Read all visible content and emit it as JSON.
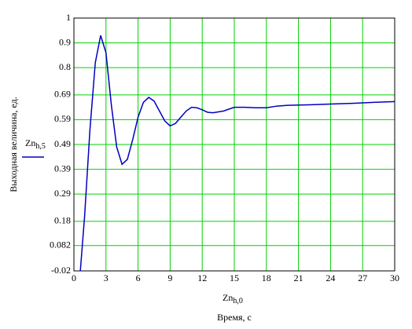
{
  "chart_data": {
    "type": "line",
    "y_label": "Выходная величина, ед.",
    "x_label": "Время, с",
    "x_var": {
      "main": "Zn",
      "sub": "h,0"
    },
    "x": [
      0.6,
      1.0,
      1.5,
      2.0,
      2.5,
      3.0,
      3.5,
      4.0,
      4.5,
      5.0,
      5.5,
      6.0,
      6.5,
      7.0,
      7.5,
      8.0,
      8.5,
      9.0,
      9.5,
      10.0,
      10.5,
      11.0,
      11.5,
      12.0,
      12.5,
      13.0,
      14.0,
      15.0,
      16.0,
      17.0,
      18.0,
      19.0,
      20.0,
      22.0,
      24.0,
      26.0,
      28.0,
      30.0
    ],
    "series": [
      {
        "name": "Zn",
        "name_sub": "h,5",
        "color": "#0000c0",
        "values": [
          -0.02,
          0.2,
          0.55,
          0.82,
          0.93,
          0.86,
          0.65,
          0.48,
          0.41,
          0.43,
          0.51,
          0.6,
          0.66,
          0.68,
          0.665,
          0.625,
          0.585,
          0.565,
          0.575,
          0.6,
          0.625,
          0.64,
          0.638,
          0.63,
          0.62,
          0.618,
          0.625,
          0.64,
          0.64,
          0.638,
          0.638,
          0.645,
          0.648,
          0.65,
          0.653,
          0.656,
          0.66,
          0.663
        ]
      }
    ],
    "xlim": [
      0,
      30
    ],
    "xticks": [
      0,
      3,
      6,
      9,
      12,
      15,
      18,
      21,
      24,
      27,
      30
    ],
    "ylim": [
      -0.02,
      1
    ],
    "yticks": [
      -0.02,
      0.082,
      0.18,
      0.29,
      0.39,
      0.49,
      0.59,
      0.69,
      0.8,
      0.9,
      1
    ],
    "grid": true,
    "grid_color": "#00d000"
  }
}
